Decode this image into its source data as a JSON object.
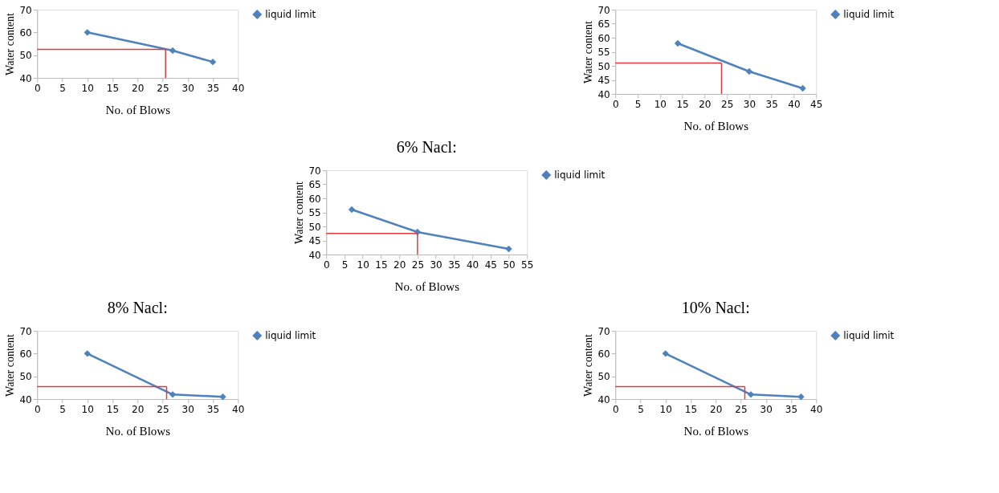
{
  "chart_data": [
    {
      "type": "line",
      "xlabel": "No. of Blows",
      "ylabel": "Water content",
      "x": [
        10,
        27,
        35
      ],
      "series": [
        {
          "name": "liquid limit",
          "color": "#4f81bd",
          "values": [
            60,
            52,
            47
          ]
        }
      ],
      "xlim": [
        0,
        40
      ],
      "xticks": [
        0,
        5,
        10,
        15,
        20,
        25,
        30,
        35,
        40
      ],
      "ylim": [
        40,
        70
      ],
      "yticks": [
        40,
        50,
        60,
        70
      ],
      "marker": "diamond",
      "legend": "right",
      "ref_lines": [
        {
          "axis": "y",
          "value": 52.5,
          "color": "#e0393e"
        },
        {
          "axis": "x",
          "value": 25.6,
          "color": "#e0393e"
        }
      ]
    },
    {
      "type": "line",
      "xlabel": "No. of Blows",
      "ylabel": "Water content",
      "x": [
        14,
        30,
        42
      ],
      "series": [
        {
          "name": "liquid limit",
          "color": "#4f81bd",
          "values": [
            58,
            48,
            42
          ]
        }
      ],
      "xlim": [
        0,
        45
      ],
      "xticks": [
        0,
        5,
        10,
        15,
        20,
        25,
        30,
        35,
        40,
        45
      ],
      "ylim": [
        40,
        70
      ],
      "yticks": [
        40,
        45,
        50,
        55,
        60,
        65,
        70
      ],
      "marker": "diamond",
      "legend": "right",
      "ref_lines": [
        {
          "axis": "y",
          "value": 51,
          "color": "#e0393e"
        },
        {
          "axis": "x",
          "value": 23.8,
          "color": "#e0393e"
        }
      ]
    },
    {
      "type": "line",
      "title": "6% Nacl:",
      "xlabel": "No. of Blows",
      "ylabel": "Water content",
      "x": [
        7,
        25,
        50
      ],
      "series": [
        {
          "name": "liquid limit",
          "color": "#4f81bd",
          "values": [
            56,
            48,
            42
          ]
        }
      ],
      "xlim": [
        0,
        55
      ],
      "xticks": [
        0,
        5,
        10,
        15,
        20,
        25,
        30,
        35,
        40,
        45,
        50,
        55
      ],
      "ylim": [
        40,
        70
      ],
      "yticks": [
        40,
        45,
        50,
        55,
        60,
        65,
        70
      ],
      "marker": "diamond",
      "legend": "right",
      "ref_lines": [
        {
          "axis": "y",
          "value": 47.5,
          "color": "#e0393e"
        },
        {
          "axis": "x",
          "value": 25,
          "color": "#e0393e"
        }
      ]
    },
    {
      "type": "line",
      "title": "8% Nacl:",
      "xlabel": "No. of Blows",
      "ylabel": "Water content",
      "x": [
        10,
        27,
        37
      ],
      "series": [
        {
          "name": "liquid limit",
          "color": "#4f81bd",
          "values": [
            60,
            42,
            41
          ]
        }
      ],
      "xlim": [
        0,
        40
      ],
      "xticks": [
        0,
        5,
        10,
        15,
        20,
        25,
        30,
        35,
        40
      ],
      "ylim": [
        40,
        70
      ],
      "yticks": [
        40,
        50,
        60,
        70
      ],
      "marker": "diamond",
      "legend": "right",
      "ref_lines": [
        {
          "axis": "y",
          "value": 45.5,
          "color": "#e0393e"
        },
        {
          "axis": "x",
          "value": 25.8,
          "color": "#e0393e"
        }
      ]
    },
    {
      "type": "line",
      "title": "10% Nacl:",
      "xlabel": "No. of Blows",
      "ylabel": "Water content",
      "x": [
        10,
        27,
        37
      ],
      "series": [
        {
          "name": "liquid limit",
          "color": "#4f81bd",
          "values": [
            60,
            42,
            41
          ]
        }
      ],
      "xlim": [
        0,
        40
      ],
      "xticks": [
        0,
        5,
        10,
        15,
        20,
        25,
        30,
        35,
        40
      ],
      "ylim": [
        40,
        70
      ],
      "yticks": [
        40,
        50,
        60,
        70
      ],
      "marker": "diamond",
      "legend": "right",
      "ref_lines": [
        {
          "axis": "y",
          "value": 45.5,
          "color": "#e0393e"
        },
        {
          "axis": "x",
          "value": 25.8,
          "color": "#e0393e"
        }
      ]
    }
  ]
}
